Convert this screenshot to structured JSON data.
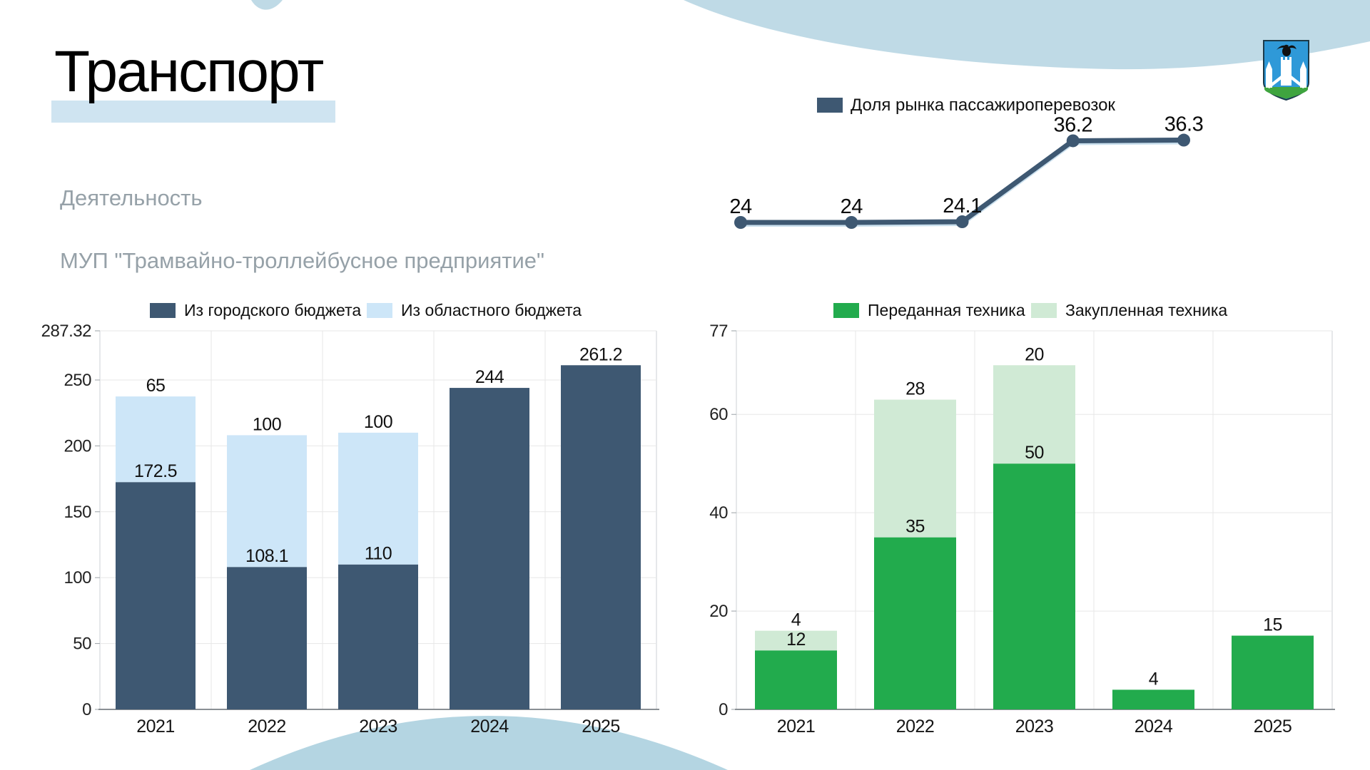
{
  "slide": {
    "title": "Транспорт",
    "subtitle1": "Деятельность",
    "subtitle2": "МУП \"Трамвайно-троллейбусное предприятие\""
  },
  "colors": {
    "dark_blue": "#3E5872",
    "light_blue_bar": "#CDE6F8",
    "green": "#22AB4D",
    "light_green": "#D0EAD5",
    "wave_top": "#BFDAE6",
    "wave_bottom": "#B4D5E2",
    "title_highlight": "#CFE4F1",
    "subtitle_gray": "#96A1A8",
    "grid": "#e7e7e7",
    "axis": "#8a8f94"
  },
  "icons": {
    "coat_of_arms": "oryol-city-coat-of-arms"
  },
  "chart_data": [
    {
      "id": "market-share",
      "type": "line",
      "legend": [
        "Доля рынка пассажироперевозок"
      ],
      "legend_position": "top",
      "values": [
        24,
        24,
        24.1,
        36.2,
        36.3
      ],
      "point_labels": [
        "24",
        "24",
        "24.1",
        "36.2",
        "36.3"
      ],
      "line_color": "#3E5872",
      "grid": false
    },
    {
      "id": "budget",
      "type": "stacked-bar",
      "categories": [
        "2021",
        "2022",
        "2023",
        "2024",
        "2025"
      ],
      "series": [
        {
          "name": "Из городского бюджета",
          "color": "#3E5872",
          "values": [
            172.5,
            108.1,
            110,
            244,
            261.2
          ]
        },
        {
          "name": "Из областного бюджета",
          "color": "#CDE6F8",
          "values": [
            65,
            100,
            100,
            0,
            0
          ]
        }
      ],
      "ylim": [
        0,
        287.32
      ],
      "yticks": [
        0,
        50,
        100,
        150,
        200,
        250,
        287.32
      ],
      "legend_position": "top",
      "grid": true
    },
    {
      "id": "vehicles",
      "type": "stacked-bar",
      "categories": [
        "2021",
        "2022",
        "2023",
        "2024",
        "2025"
      ],
      "series": [
        {
          "name": "Переданная техника",
          "color": "#22AB4D",
          "values": [
            12,
            35,
            50,
            4,
            15
          ]
        },
        {
          "name": "Закупленная техника",
          "color": "#D0EAD5",
          "values": [
            4,
            28,
            20,
            0,
            0
          ]
        }
      ],
      "ylim": [
        0,
        77
      ],
      "yticks": [
        0,
        20,
        40,
        60,
        77
      ],
      "legend_position": "top",
      "grid": true
    }
  ]
}
